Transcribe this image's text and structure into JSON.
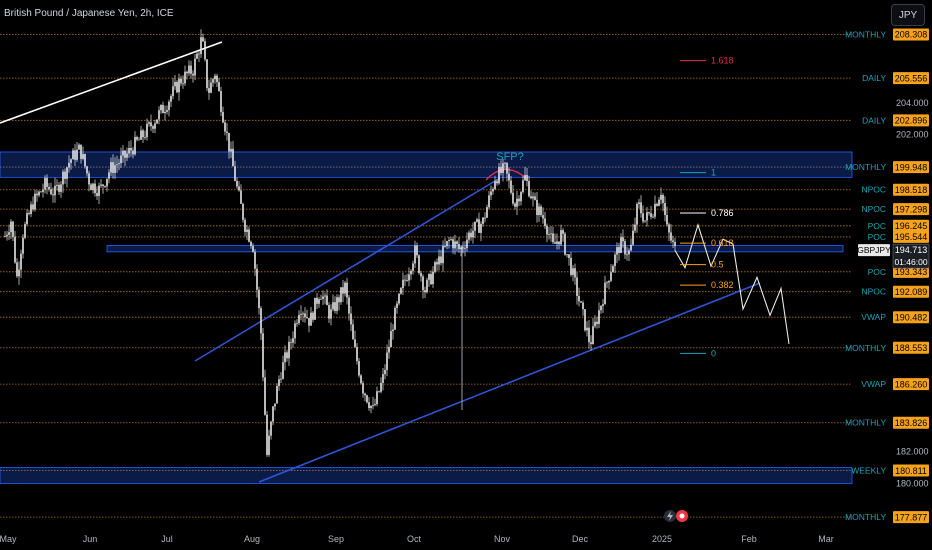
{
  "title": "British Pound / Japanese Yen, 2h, ICE",
  "currency_button": "JPY",
  "colors": {
    "background": "#000000",
    "candle": "#e8e8e8",
    "trend": "#2f55d4",
    "level": "#d98a1e",
    "label_cyan": "#1ba3b9",
    "tag_orange": "#f7a21b",
    "tag_blue": "#2962ff",
    "white_line": "#ffffff",
    "sfp": "#e5304a"
  },
  "chart_data": {
    "type": "candlestick",
    "symbol": "GBPJPY",
    "ylim": [
      177.0,
      209.6
    ],
    "x_ticks": [
      "May",
      "Jun",
      "Jul",
      "Aug",
      "Sep",
      "Oct",
      "Nov",
      "Dec",
      "2025",
      "Feb",
      "Mar"
    ],
    "y_ticks": [
      "204.000",
      "202.000",
      "182.000",
      "180.000"
    ],
    "level_tags": [
      {
        "label": "MONTHLY",
        "value": "208.308"
      },
      {
        "label": "DAILY",
        "value": "205.556"
      },
      {
        "label": "DAILY",
        "value": "202.896"
      },
      {
        "label": "MONTHLY",
        "value": "199.948"
      },
      {
        "label": "NPOC",
        "value": "198.518"
      },
      {
        "label": "NPOC",
        "value": "197.298"
      },
      {
        "label": "POC",
        "value": "196.245"
      },
      {
        "label": "POC",
        "value": "195.544"
      },
      {
        "label": "POC",
        "value": "193.343"
      },
      {
        "label": "NPOC",
        "value": "192.089"
      },
      {
        "label": "VWAP",
        "value": "190.482"
      },
      {
        "label": "MONTHLY",
        "value": "188.553"
      },
      {
        "label": "VWAP",
        "value": "186.260"
      },
      {
        "label": "MONTHLY",
        "value": "183.826"
      },
      {
        "label": "WEEKLY",
        "value": "180.811"
      },
      {
        "label": "MONTHLY",
        "value": "177.877"
      }
    ],
    "current_price": {
      "symbol": "GBPJPY",
      "value": "194.713",
      "countdown": "01:46:00"
    },
    "fib_levels": [
      {
        "label": "1.618",
        "value": 206.66
      },
      {
        "label": "1",
        "value": 199.6
      },
      {
        "label": "0.786",
        "value": 197.05
      },
      {
        "label": "0.618",
        "value": 195.15
      },
      {
        "label": "0.5",
        "value": 193.8
      },
      {
        "label": "0.382",
        "value": 192.5
      },
      {
        "label": "0",
        "value": 188.2
      }
    ],
    "annotation": "SFP?",
    "price_path": [
      {
        "t": 0,
        "p": 195.6
      },
      {
        "t": 6,
        "p": 196.6
      },
      {
        "t": 12,
        "p": 193.0
      },
      {
        "t": 18,
        "p": 195.8
      },
      {
        "t": 28,
        "p": 197.7
      },
      {
        "t": 40,
        "p": 198.8
      },
      {
        "t": 50,
        "p": 198.3
      },
      {
        "t": 65,
        "p": 200.4
      },
      {
        "t": 75,
        "p": 201.1
      },
      {
        "t": 85,
        "p": 198.9
      },
      {
        "t": 95,
        "p": 198.5
      },
      {
        "t": 105,
        "p": 199.8
      },
      {
        "t": 120,
        "p": 200.6
      },
      {
        "t": 140,
        "p": 202.1
      },
      {
        "t": 160,
        "p": 203.8
      },
      {
        "t": 175,
        "p": 205.4
      },
      {
        "t": 188,
        "p": 206.1
      },
      {
        "t": 197,
        "p": 208.1
      },
      {
        "t": 203,
        "p": 204.6
      },
      {
        "t": 210,
        "p": 205.9
      },
      {
        "t": 220,
        "p": 202.6
      },
      {
        "t": 232,
        "p": 198.6
      },
      {
        "t": 240,
        "p": 196.3
      },
      {
        "t": 248,
        "p": 195.0
      },
      {
        "t": 256,
        "p": 189.5
      },
      {
        "t": 262,
        "p": 181.8
      },
      {
        "t": 268,
        "p": 184.6
      },
      {
        "t": 275,
        "p": 186.9
      },
      {
        "t": 285,
        "p": 188.7
      },
      {
        "t": 295,
        "p": 191.3
      },
      {
        "t": 305,
        "p": 190.2
      },
      {
        "t": 315,
        "p": 192.2
      },
      {
        "t": 325,
        "p": 190.6
      },
      {
        "t": 340,
        "p": 192.4
      },
      {
        "t": 348,
        "p": 188.9
      },
      {
        "t": 358,
        "p": 186.0
      },
      {
        "t": 368,
        "p": 184.6
      },
      {
        "t": 378,
        "p": 186.6
      },
      {
        "t": 388,
        "p": 190.1
      },
      {
        "t": 398,
        "p": 192.5
      },
      {
        "t": 410,
        "p": 194.6
      },
      {
        "t": 420,
        "p": 192.2
      },
      {
        "t": 432,
        "p": 193.8
      },
      {
        "t": 445,
        "p": 195.4
      },
      {
        "t": 455,
        "p": 194.7
      },
      {
        "t": 465,
        "p": 195.8
      },
      {
        "t": 478,
        "p": 196.5
      },
      {
        "t": 490,
        "p": 199.3
      },
      {
        "t": 500,
        "p": 199.8
      },
      {
        "t": 510,
        "p": 197.6
      },
      {
        "t": 520,
        "p": 199.3
      },
      {
        "t": 530,
        "p": 197.5
      },
      {
        "t": 540,
        "p": 196.6
      },
      {
        "t": 548,
        "p": 194.9
      },
      {
        "t": 556,
        "p": 195.7
      },
      {
        "t": 566,
        "p": 193.6
      },
      {
        "t": 575,
        "p": 191.3
      },
      {
        "t": 585,
        "p": 188.8
      },
      {
        "t": 595,
        "p": 191.1
      },
      {
        "t": 605,
        "p": 193.4
      },
      {
        "t": 615,
        "p": 195.1
      },
      {
        "t": 625,
        "p": 194.5
      },
      {
        "t": 633,
        "p": 197.6
      },
      {
        "t": 640,
        "p": 196.6
      },
      {
        "t": 648,
        "p": 197.3
      },
      {
        "t": 656,
        "p": 198.5
      },
      {
        "t": 662,
        "p": 196.0
      },
      {
        "t": 670,
        "p": 194.7
      }
    ],
    "projection_path": [
      {
        "t": 670,
        "p": 194.7
      },
      {
        "t": 680,
        "p": 193.6
      },
      {
        "t": 693,
        "p": 196.3
      },
      {
        "t": 706,
        "p": 193.7
      },
      {
        "t": 718,
        "p": 195.4
      },
      {
        "t": 728,
        "p": 195.1
      },
      {
        "t": 738,
        "p": 191.0
      },
      {
        "t": 752,
        "p": 193.0
      },
      {
        "t": 765,
        "p": 190.6
      },
      {
        "t": 776,
        "p": 192.3
      },
      {
        "t": 784,
        "p": 188.8
      }
    ]
  }
}
